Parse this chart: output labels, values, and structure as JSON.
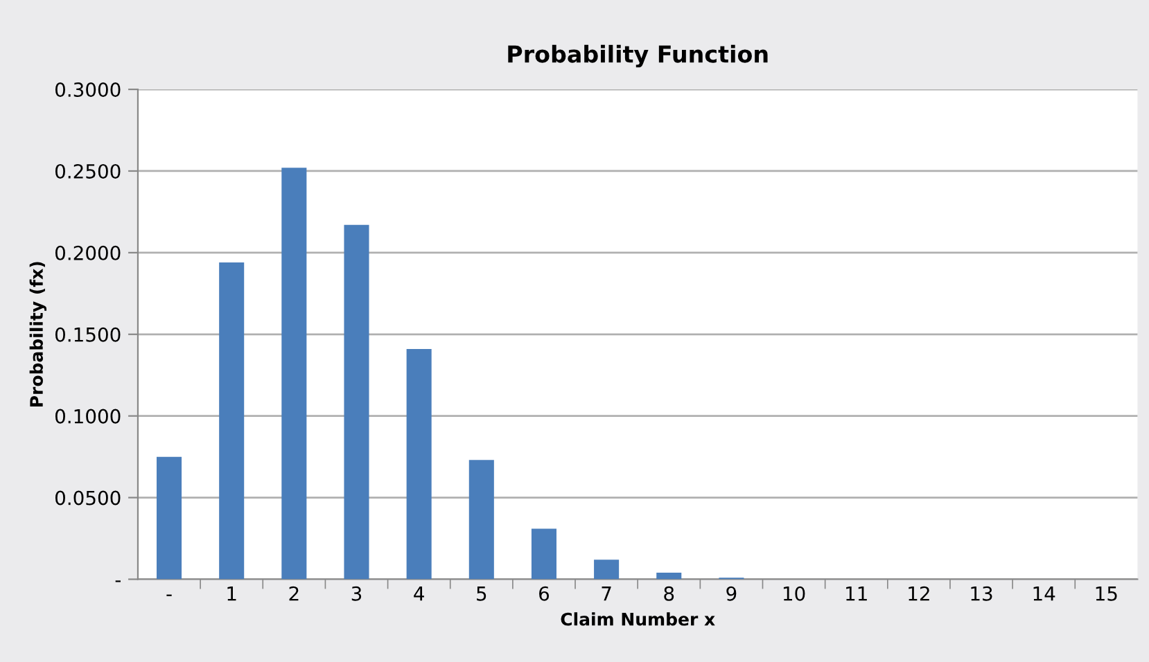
{
  "chart_data": {
    "type": "bar",
    "title": "Probability Function",
    "xlabel": "Claim Number x",
    "ylabel": "Probability (fx)",
    "categories": [
      "-",
      "1",
      "2",
      "3",
      "4",
      "5",
      "6",
      "7",
      "8",
      "9",
      "10",
      "11",
      "12",
      "13",
      "14",
      "15"
    ],
    "values": [
      0.075,
      0.194,
      0.252,
      0.217,
      0.141,
      0.073,
      0.031,
      0.012,
      0.004,
      0.001,
      0,
      0,
      0,
      0,
      0,
      0
    ],
    "color": "#4a7ebb",
    "ylim": [
      0,
      0.3
    ],
    "yticks": [
      {
        "value": 0,
        "label": "-"
      },
      {
        "value": 0.05,
        "label": "0.0500"
      },
      {
        "value": 0.1,
        "label": "0.1000"
      },
      {
        "value": 0.15,
        "label": "0.1500"
      },
      {
        "value": 0.2,
        "label": "0.2000"
      },
      {
        "value": 0.25,
        "label": "0.2500"
      },
      {
        "value": 0.3,
        "label": "0.3000"
      }
    ],
    "grid": "y",
    "legend": false
  }
}
